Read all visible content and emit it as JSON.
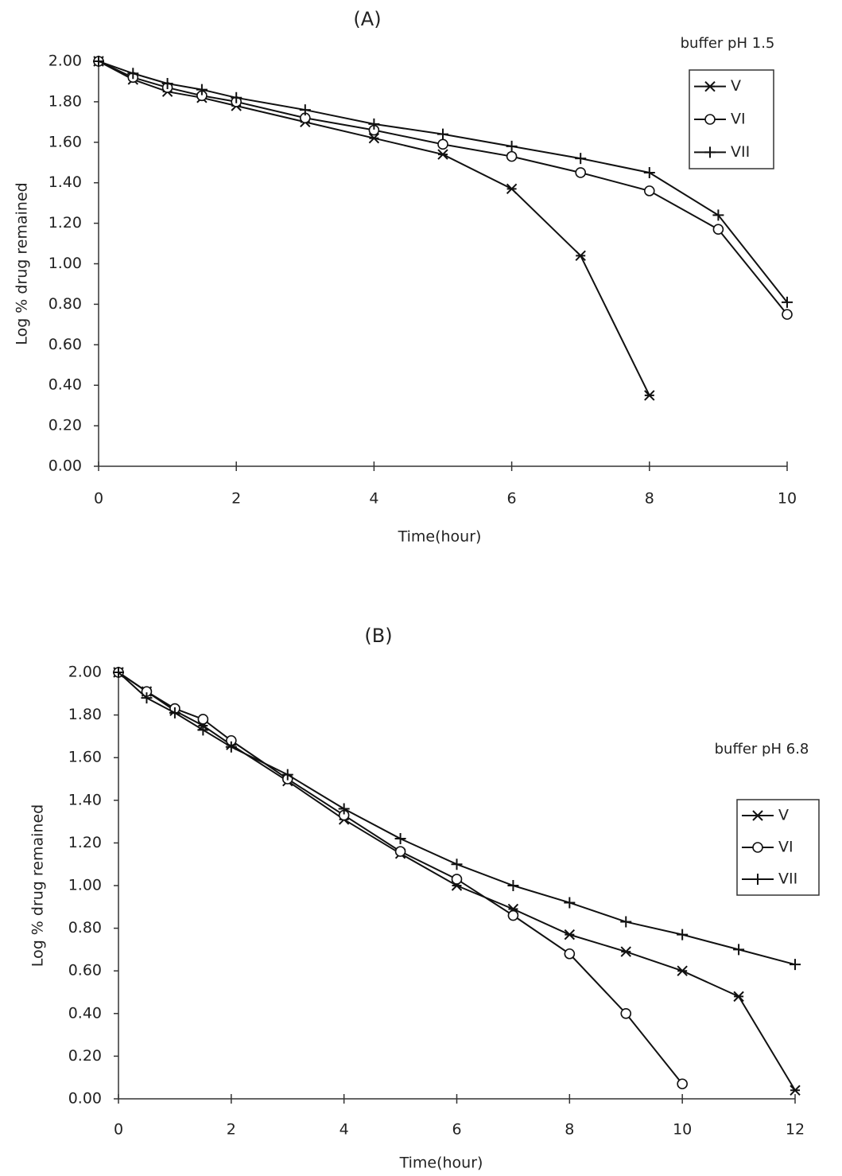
{
  "chart_data": [
    {
      "type": "line",
      "title": "(A)",
      "annotation": "buffer pH 1.5",
      "x_label": "Time(hour)",
      "y_label": "Log % drug remained",
      "x": [
        0,
        0.5,
        1,
        1.5,
        2,
        3,
        4,
        5,
        6,
        7,
        8,
        9,
        10
      ],
      "series": [
        {
          "name": "V",
          "marker": "x",
          "color": "#111111",
          "values": [
            2.0,
            1.91,
            1.85,
            1.82,
            1.78,
            1.7,
            1.62,
            1.54,
            1.37,
            1.04,
            0.35,
            null,
            null
          ]
        },
        {
          "name": "VI",
          "marker": "o",
          "color": "#111111",
          "values": [
            2.0,
            1.92,
            1.87,
            1.83,
            1.8,
            1.72,
            1.66,
            1.59,
            1.53,
            1.45,
            1.36,
            1.17,
            0.75
          ]
        },
        {
          "name": "VII",
          "marker": "+",
          "color": "#111111",
          "values": [
            2.0,
            1.94,
            1.89,
            1.86,
            1.82,
            1.76,
            1.69,
            1.64,
            1.58,
            1.52,
            1.45,
            1.24,
            0.81
          ]
        }
      ],
      "xlim": [
        0,
        10
      ],
      "xticks": [
        0,
        2,
        4,
        6,
        8,
        10
      ],
      "ylim": [
        0,
        2
      ],
      "yticks": [
        {
          "value": 0,
          "label": "0.00"
        },
        {
          "value": 0.2,
          "label": "0.20"
        },
        {
          "value": 0.4,
          "label": "0.40"
        },
        {
          "value": 0.6,
          "label": "0.60"
        },
        {
          "value": 0.8,
          "label": "0.80"
        },
        {
          "value": 1,
          "label": "1.00"
        },
        {
          "value": 1.2,
          "label": "1.20"
        },
        {
          "value": 1.4,
          "label": "1.40"
        },
        {
          "value": 1.6,
          "label": "1.60"
        },
        {
          "value": 1.8,
          "label": "1.80"
        },
        {
          "value": 2,
          "label": "2.00"
        }
      ],
      "grid": false,
      "legend": "upper right"
    },
    {
      "type": "line",
      "title": "(B)",
      "annotation": "buffer pH  6.8",
      "x_label": "Time(hour)",
      "y_label": "Log % drug remained",
      "x": [
        0,
        0.5,
        1,
        1.5,
        2,
        3,
        4,
        5,
        6,
        7,
        8,
        9,
        10,
        11,
        12
      ],
      "series": [
        {
          "name": "V",
          "marker": "x",
          "color": "#111111",
          "values": [
            2.0,
            1.91,
            1.82,
            1.75,
            1.66,
            1.49,
            1.31,
            1.15,
            1.0,
            0.89,
            0.77,
            0.69,
            0.6,
            0.48,
            0.04
          ]
        },
        {
          "name": "VI",
          "marker": "o",
          "color": "#111111",
          "values": [
            2.0,
            1.91,
            1.83,
            1.78,
            1.68,
            1.5,
            1.33,
            1.16,
            1.03,
            0.86,
            0.68,
            0.4,
            0.07,
            null,
            null
          ]
        },
        {
          "name": "VII",
          "marker": "+",
          "color": "#111111",
          "values": [
            2.0,
            1.88,
            1.81,
            1.73,
            1.65,
            1.52,
            1.36,
            1.22,
            1.1,
            1.0,
            0.92,
            0.83,
            0.77,
            0.7,
            0.63
          ]
        }
      ],
      "xlim": [
        0,
        12
      ],
      "xticks": [
        0,
        2,
        4,
        6,
        8,
        10,
        12
      ],
      "ylim": [
        0,
        2
      ],
      "yticks": [
        {
          "value": 0,
          "label": "0.00"
        },
        {
          "value": 0.2,
          "label": "0.20"
        },
        {
          "value": 0.4,
          "label": "0.40"
        },
        {
          "value": 0.6,
          "label": "0.60"
        },
        {
          "value": 0.8,
          "label": "0.80"
        },
        {
          "value": 1,
          "label": "1.00"
        },
        {
          "value": 1.2,
          "label": "1.20"
        },
        {
          "value": 1.4,
          "label": "1.40"
        },
        {
          "value": 1.6,
          "label": "1.60"
        },
        {
          "value": 1.8,
          "label": "1.80"
        },
        {
          "value": 2,
          "label": "2.00"
        }
      ],
      "grid": false,
      "legend": "right"
    }
  ]
}
